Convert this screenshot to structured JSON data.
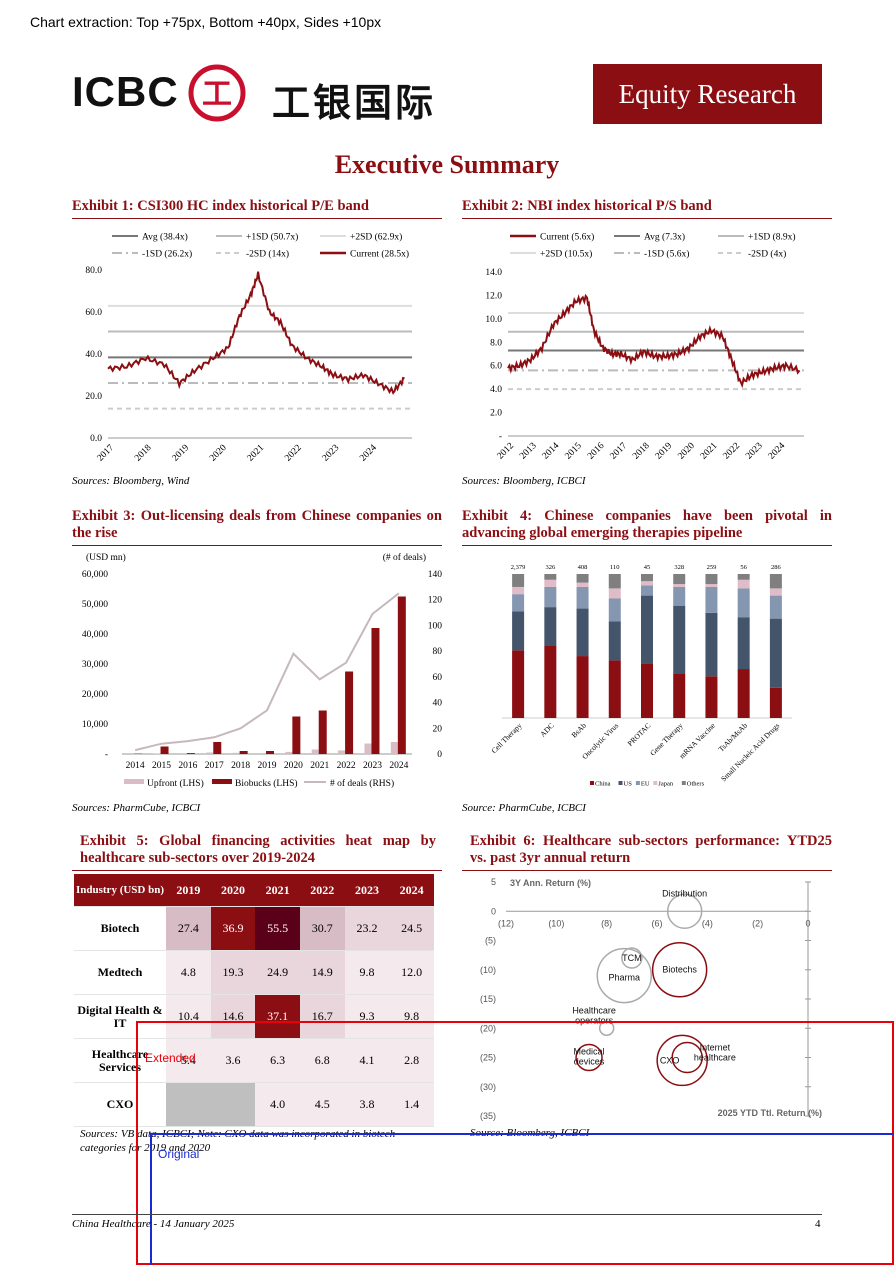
{
  "topnote": "Chart extraction: Top +75px, Bottom +40px, Sides +10px",
  "logo": {
    "text": "ICBC",
    "cn": "工银国际",
    "seal": "工"
  },
  "header_badge": "Equity Research",
  "title": "Executive Summary",
  "colors": {
    "accent": "#8b0e12"
  },
  "exhibit1": {
    "title": "Exhibit 1: CSI300 HC index historical P/E band",
    "source": "Sources: Bloomberg, Wind",
    "chart_data": {
      "type": "line",
      "legend": [
        "Avg (38.4x)",
        "+1SD (50.7x)",
        "+2SD (62.9x)",
        "-1SD (26.2x)",
        "-2SD (14x)",
        "Current (28.5x)"
      ],
      "bands": [
        38.4,
        50.7,
        62.9,
        26.2,
        14
      ],
      "ylim": [
        0,
        80
      ],
      "yticks": [
        "0.0",
        "20.0",
        "40.0",
        "60.0",
        "80.0"
      ],
      "xticks": [
        "2017",
        "2018",
        "2019",
        "2020",
        "2021",
        "2022",
        "2023",
        "2024"
      ],
      "x": [
        2017.0,
        2017.5,
        2018.0,
        2018.5,
        2018.9,
        2019.3,
        2019.8,
        2020.2,
        2020.5,
        2020.8,
        2021.0,
        2021.3,
        2021.6,
        2021.9,
        2022.3,
        2022.7,
        2023.0,
        2023.4,
        2023.8,
        2024.2,
        2024.6,
        2024.9
      ],
      "y": [
        33,
        34,
        38,
        35,
        26,
        32,
        38,
        43,
        58,
        68,
        78,
        60,
        55,
        44,
        38,
        34,
        30,
        28,
        30,
        26,
        22,
        28.5
      ]
    }
  },
  "exhibit2": {
    "title": "Exhibit 2: NBI index historical P/S band",
    "source": "Sources: Bloomberg, ICBCI",
    "chart_data": {
      "type": "line",
      "legend": [
        "Current (5.6x)",
        "Avg (7.3x)",
        "+1SD (8.9x)",
        "+2SD (10.5x)",
        "-1SD (5.6x)",
        "-2SD (4x)"
      ],
      "bands": [
        7.3,
        8.9,
        10.5,
        5.6,
        4
      ],
      "ylim": [
        0,
        14
      ],
      "yticks": [
        "-",
        "2.0",
        "4.0",
        "6.0",
        "8.0",
        "10.0",
        "12.0",
        "14.0"
      ],
      "xticks": [
        "2012",
        "2013",
        "2014",
        "2015",
        "2016",
        "2017",
        "2018",
        "2019",
        "2020",
        "2021",
        "2022",
        "2023",
        "2024"
      ],
      "x": [
        2012.0,
        2012.5,
        2013.0,
        2013.5,
        2014.0,
        2014.5,
        2015.0,
        2015.5,
        2015.8,
        2016.2,
        2016.6,
        2017.0,
        2017.5,
        2018.0,
        2018.5,
        2019.0,
        2019.5,
        2020.0,
        2020.5,
        2021.0,
        2021.5,
        2021.9,
        2022.3,
        2022.8,
        2023.3,
        2023.8,
        2024.3,
        2024.9
      ],
      "y": [
        5.8,
        6.0,
        6.5,
        7.5,
        9.5,
        10.5,
        11.5,
        11.8,
        9.0,
        7.5,
        7.0,
        7.0,
        6.5,
        7.2,
        6.8,
        6.8,
        7.0,
        7.5,
        8.5,
        9.0,
        8.5,
        6.5,
        4.5,
        5.2,
        5.5,
        5.8,
        6.0,
        5.6
      ]
    }
  },
  "exhibit3": {
    "title": "Exhibit 3: Out-licensing deals from Chinese companies on the rise",
    "source": "Sources: PharmCube, ICBCI",
    "chart_data": {
      "type": "bar",
      "left_unit": "(USD mn)",
      "right_unit": "(# of deals)",
      "categories": [
        "2014",
        "2015",
        "2016",
        "2017",
        "2018",
        "2019",
        "2020",
        "2021",
        "2022",
        "2023",
        "2024"
      ],
      "ylim": [
        0,
        60000
      ],
      "y2lim": [
        0,
        140
      ],
      "yticks": [
        "-",
        "10,000",
        "20,000",
        "30,000",
        "40,000",
        "50,000",
        "60,000"
      ],
      "y2ticks": [
        "0",
        "20",
        "40",
        "60",
        "80",
        "100",
        "120",
        "140"
      ],
      "series": [
        {
          "name": "Upfront (LHS)",
          "values": [
            0,
            200,
            300,
            500,
            400,
            300,
            700,
            1500,
            1200,
            3500,
            4000
          ]
        },
        {
          "name": "Biobucks (LHS)",
          "values": [
            100,
            2500,
            300,
            4000,
            1000,
            1000,
            12500,
            14500,
            27500,
            42000,
            52500
          ]
        },
        {
          "name": "# of deals (RHS)",
          "values": [
            3,
            8,
            10,
            13,
            20,
            34,
            78,
            58,
            71,
            109,
            125
          ]
        }
      ]
    }
  },
  "exhibit4": {
    "title": "Exhibit 4: Chinese companies have been pivotal in advancing global emerging therapies pipeline",
    "source": "Source: PharmCube, ICBCI",
    "chart_data": {
      "type": "bar",
      "categories": [
        "Cell Therapy",
        "ADC",
        "BsAb",
        "Oncolytic Virus",
        "PROTAC",
        "Gene Therapy",
        "mRNA Vaccine",
        "TsAb/MsAb",
        "Small Nucleic Acid Drugs"
      ],
      "totals": [
        "2,379",
        "326",
        "408",
        "110",
        "45",
        "328",
        "259",
        "56",
        "286"
      ],
      "series": [
        {
          "name": "China",
          "values": [
            47,
            50,
            43,
            40,
            38,
            31,
            29,
            34,
            21
          ]
        },
        {
          "name": "US",
          "values": [
            27,
            27,
            33,
            27,
            47,
            47,
            44,
            36,
            48
          ]
        },
        {
          "name": "EU",
          "values": [
            12,
            14,
            15,
            16,
            7,
            13,
            18,
            20,
            16
          ]
        },
        {
          "name": "Japan",
          "values": [
            5,
            5,
            3,
            7,
            3,
            2,
            2,
            6,
            5
          ]
        },
        {
          "name": "Others",
          "values": [
            9,
            4,
            6,
            10,
            5,
            7,
            7,
            4,
            10
          ]
        }
      ]
    }
  },
  "exhibit5": {
    "title": "Exhibit 5: Global financing activities heat map by healthcare sub-sectors over 2019-2024",
    "source": "Sources: VB data, ICBCI; Note: CXO data was incorporated in biotech categories for 2019 and 2020",
    "header": [
      "Industry (USD bn)",
      "2019",
      "2020",
      "2021",
      "2022",
      "2023",
      "2024"
    ],
    "rows": [
      {
        "label": "Biotech",
        "cells": [
          "27.4",
          "36.9",
          "55.5",
          "30.7",
          "23.2",
          "24.5"
        ]
      },
      {
        "label": "Medtech",
        "cells": [
          "4.8",
          "19.3",
          "24.9",
          "14.9",
          "9.8",
          "12.0"
        ]
      },
      {
        "label": "Digital Health & IT",
        "cells": [
          "10.4",
          "14.6",
          "37.1",
          "16.7",
          "9.3",
          "9.8"
        ]
      },
      {
        "label": "Healthcare Services",
        "cells": [
          "5.4",
          "3.6",
          "6.3",
          "6.8",
          "4.1",
          "2.8"
        ]
      },
      {
        "label": "CXO",
        "cells": [
          "",
          "",
          "4.0",
          "4.5",
          "3.8",
          "1.4"
        ]
      }
    ]
  },
  "exhibit6": {
    "title": "Exhibit 6: Healthcare sub-sectors performance: YTD25 vs. past 3yr annual return",
    "source": "Source: Bloomberg, ICBCI",
    "chart_data": {
      "type": "scatter",
      "ylabel": "3Y Ann. Return (%)",
      "xlabel": "2025 YTD Ttl. Return (%)",
      "xlim": [
        -12,
        0
      ],
      "ylim": [
        -35,
        5
      ],
      "xticks": [
        "(12)",
        "(10)",
        "(8)",
        "(6)",
        "(4)",
        "(2)",
        "0"
      ],
      "yticks": [
        "5",
        "0",
        "(5)",
        "(10)",
        "(15)",
        "(20)",
        "(25)",
        "(30)",
        "(35)"
      ],
      "points": [
        {
          "label": "Distribution",
          "x": -4.9,
          "y": 0,
          "color": "#aaaaaa",
          "r": 17
        },
        {
          "label": "TCM",
          "x": -7.0,
          "y": -8,
          "color": "#aaaaaa",
          "r": 10
        },
        {
          "label": "Pharma",
          "x": -7.3,
          "y": -11,
          "color": "#aaaaaa",
          "r": 27
        },
        {
          "label": "Biotechs",
          "x": -5.1,
          "y": -10,
          "color": "#8b0e12",
          "r": 27
        },
        {
          "label": "Healthcare operators",
          "x": -8.0,
          "y": -20,
          "color": "#aaaaaa",
          "r": 7
        },
        {
          "label": "Medical devices",
          "x": -8.7,
          "y": -25,
          "color": "#8b0e12",
          "r": 13
        },
        {
          "label": "CXO",
          "x": -5.0,
          "y": -25.5,
          "color": "#8b0e12",
          "r": 25
        },
        {
          "label": "Internet healthcare",
          "x": -4.8,
          "y": -25,
          "color": "#8b0e12",
          "r": 15
        }
      ]
    }
  },
  "overlay": {
    "extended": "Extended",
    "original": "Original"
  },
  "footer": {
    "left": "China Healthcare - 14 January 2025",
    "page": "4"
  }
}
